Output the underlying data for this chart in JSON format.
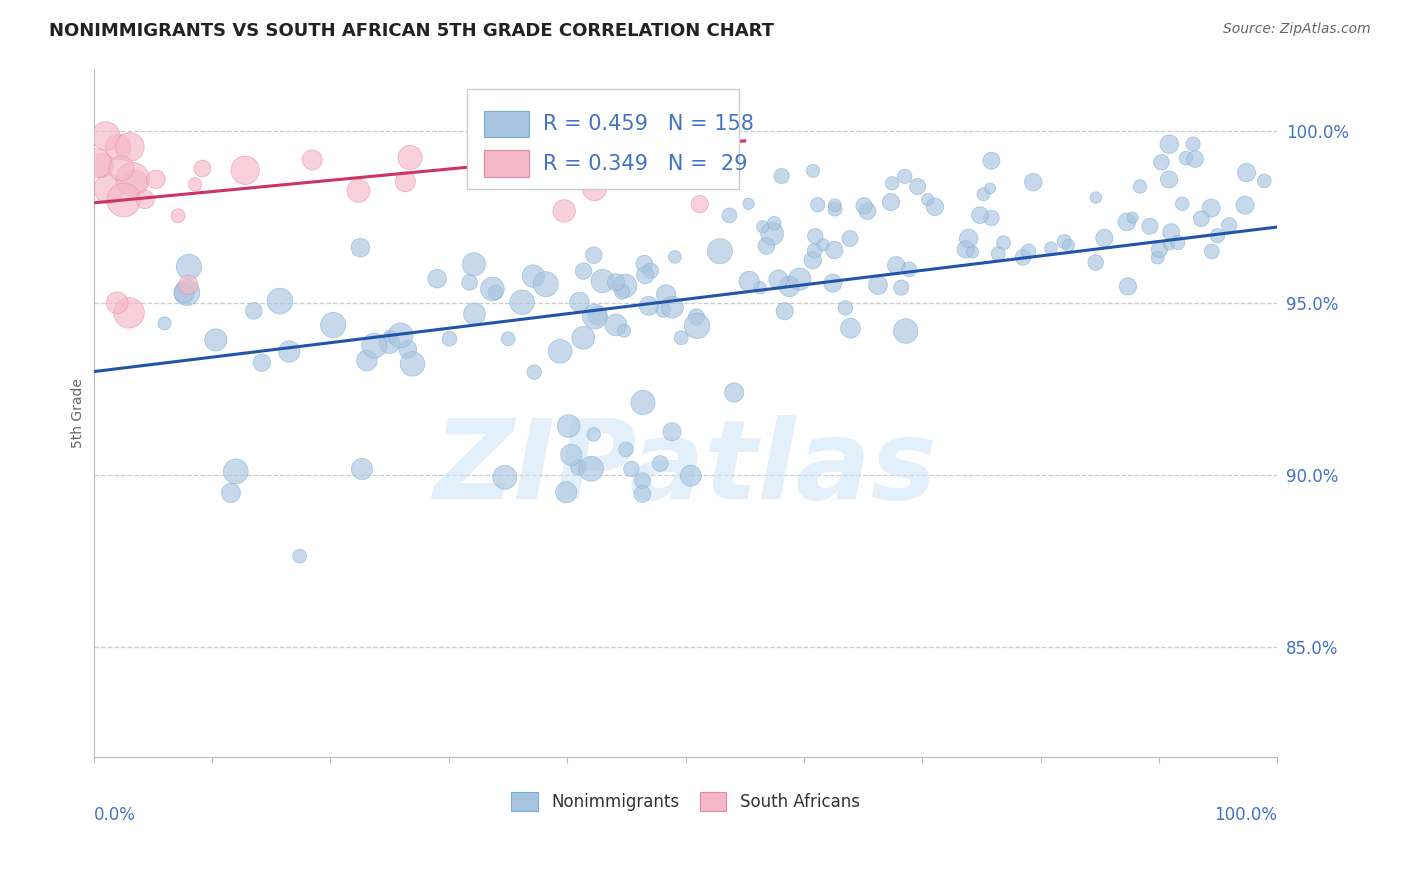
{
  "title": "NONIMMIGRANTS VS SOUTH AFRICAN 5TH GRADE CORRELATION CHART",
  "source": "Source: ZipAtlas.com",
  "ylabel": "5th Grade",
  "legend_labels": [
    "Nonimmigrants",
    "South Africans"
  ],
  "R_blue": 0.459,
  "N_blue": 158,
  "R_pink": 0.349,
  "N_pink": 29,
  "blue_color": "#a8c4e0",
  "blue_edge_color": "#7aaed0",
  "pink_color": "#f4b8c8",
  "pink_edge_color": "#e888a0",
  "blue_line_color": "#2255aa",
  "pink_line_color": "#cc3366",
  "legend_text_color": "#4472c4",
  "ytick_labels": [
    "85.0%",
    "90.0%",
    "95.0%",
    "100.0%"
  ],
  "ytick_values": [
    0.85,
    0.9,
    0.95,
    1.0
  ],
  "xmin": 0.0,
  "xmax": 1.0,
  "ymin": 0.818,
  "ymax": 1.018,
  "blue_trend_y0": 0.93,
  "blue_trend_y1": 0.972,
  "pink_trend_x0": 0.0,
  "pink_trend_x1": 0.55,
  "pink_trend_y0": 0.979,
  "pink_trend_y1": 0.997,
  "watermark": "ZIPatlas",
  "background_color": "#ffffff",
  "grid_color": "#cccccc",
  "grid_style": "--"
}
